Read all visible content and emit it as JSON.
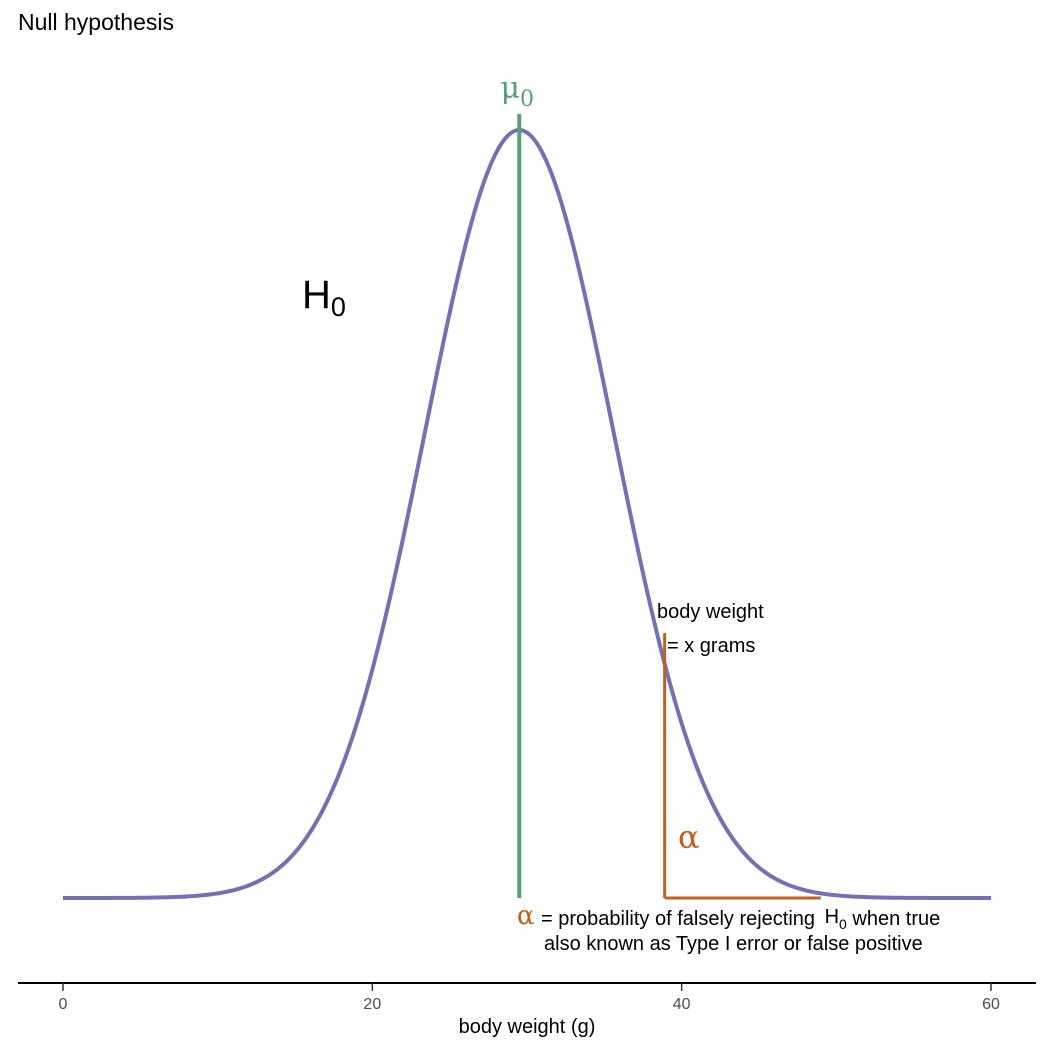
{
  "chart_data": {
    "type": "line",
    "title": "Null hypothesis",
    "xlabel": "body weight (g)",
    "ylabel": "",
    "xlim": [
      -3,
      63
    ],
    "x_ticks": [
      0,
      20,
      40,
      60
    ],
    "x_tick_labels": [
      "0",
      "20",
      "40",
      "60"
    ],
    "grid": false,
    "legend": "none",
    "series": [
      {
        "kind": "normal_density",
        "mean": 29.5,
        "sd": 6.1,
        "x_range": [
          0,
          60
        ],
        "color": "#7570B3"
      }
    ],
    "reference_lines": [
      {
        "kind": "vertical",
        "x": 29.5,
        "label": "μ",
        "label_subscript": "0",
        "color": "#5A9E78"
      },
      {
        "kind": "vertical",
        "x": 38.9,
        "color": "#C0621E"
      }
    ],
    "shaded_tail": {
      "from_x": 38.9,
      "to_x": 49,
      "color": "#C0621E"
    },
    "annotations": {
      "curve_label": {
        "text": "H",
        "subscript": "0"
      },
      "threshold_label_line1": "body weight",
      "threshold_label_line2": "= x grams",
      "tail_label": "α",
      "alpha_note": {
        "symbol": "α",
        "line1_prefix": "= probability of falsely rejecting ",
        "h_letter": "H",
        "h_subscript": "0",
        "line1_suffix": " when true",
        "line2": "also known as Type I error or false positive"
      }
    },
    "colors": {
      "curve": "#7570B3",
      "mean_line": "#5A9E78",
      "alpha": "#C0621E",
      "axis": "#000000",
      "text": "#000000"
    }
  }
}
